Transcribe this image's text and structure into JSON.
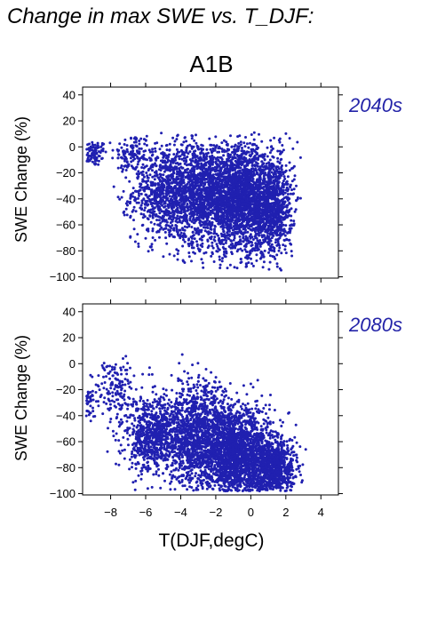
{
  "figure": {
    "title": "Change in max SWE vs. T_DJF:",
    "scenario": "A1B"
  },
  "colors": {
    "points": "#2020b0",
    "panel_label": "#2323a8"
  },
  "chart_data": [
    {
      "type": "scatter",
      "panel_label": "2040s",
      "ylabel": "SWE Change (%)",
      "xlabel": "",
      "xlim": [
        -9.6,
        5.0
      ],
      "ylim": [
        -101,
        46
      ],
      "xticks": [
        -8,
        -6,
        -4,
        -2,
        0,
        2,
        4
      ],
      "yticks": [
        40,
        20,
        0,
        -20,
        -40,
        -60,
        -80,
        -100
      ],
      "x_tick_labels_shown": false,
      "grid": false,
      "point_cloud": {
        "approx_points": 5200,
        "clusters": [
          {
            "x_mean": -9.0,
            "x_sd": 0.4,
            "y_mean": -5,
            "y_sd": 5,
            "share": 0.02
          },
          {
            "x_mean": -6.8,
            "x_sd": 0.5,
            "y_mean": -5,
            "y_sd": 8,
            "share": 0.02
          },
          {
            "x_mean": -5.0,
            "x_sd": 0.9,
            "y_mean": -35,
            "y_sd": 18,
            "share": 0.16
          },
          {
            "x_mean": -2.8,
            "x_sd": 0.9,
            "y_mean": -35,
            "y_sd": 20,
            "share": 0.24
          },
          {
            "x_mean": -0.6,
            "x_sd": 0.9,
            "y_mean": -40,
            "y_sd": 20,
            "share": 0.38
          },
          {
            "x_mean": 1.2,
            "x_sd": 0.6,
            "y_mean": -45,
            "y_sd": 20,
            "share": 0.18
          }
        ],
        "y_clip": [
          -95,
          11
        ]
      }
    },
    {
      "type": "scatter",
      "panel_label": "2080s",
      "ylabel": "SWE Change (%)",
      "xlabel": "T(DJF,degC)",
      "xlim": [
        -9.6,
        5.0
      ],
      "ylim": [
        -101,
        46
      ],
      "xticks": [
        -8,
        -6,
        -4,
        -2,
        0,
        2,
        4
      ],
      "yticks": [
        40,
        20,
        0,
        -20,
        -40,
        -60,
        -80,
        -100
      ],
      "x_tick_labels_shown": true,
      "grid": false,
      "point_cloud": {
        "approx_points": 5200,
        "clusters": [
          {
            "x_mean": -9.2,
            "x_sd": 0.3,
            "y_mean": -30,
            "y_sd": 6,
            "share": 0.01
          },
          {
            "x_mean": -7.8,
            "x_sd": 0.5,
            "y_mean": -20,
            "y_sd": 12,
            "share": 0.03
          },
          {
            "x_mean": -5.5,
            "x_sd": 0.9,
            "y_mean": -55,
            "y_sd": 15,
            "share": 0.16
          },
          {
            "x_mean": -3.0,
            "x_sd": 0.9,
            "y_mean": -55,
            "y_sd": 20,
            "share": 0.24
          },
          {
            "x_mean": -0.8,
            "x_sd": 0.9,
            "y_mean": -70,
            "y_sd": 18,
            "share": 0.38
          },
          {
            "x_mean": 1.2,
            "x_sd": 0.7,
            "y_mean": -80,
            "y_sd": 12,
            "share": 0.18
          }
        ],
        "y_clip": [
          -98,
          9
        ]
      }
    }
  ]
}
